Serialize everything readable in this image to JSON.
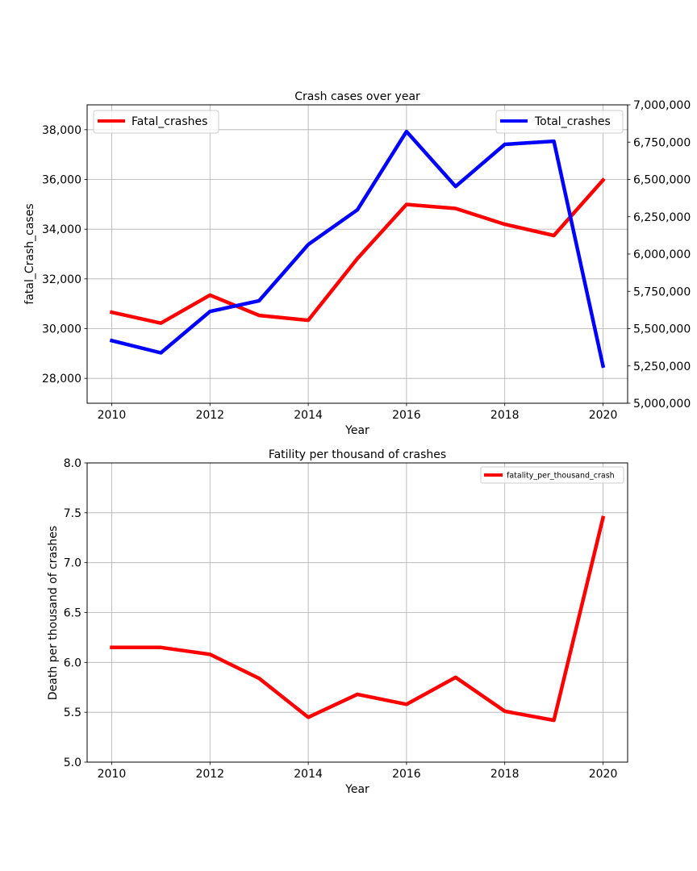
{
  "chart_data": [
    {
      "type": "line",
      "title": "Crash cases over year",
      "xlabel": "Year",
      "ylabel": "fatal_Crash_cases",
      "xlim": [
        2009.5,
        2020.5
      ],
      "xticks": [
        2010,
        2012,
        2014,
        2016,
        2018,
        2020
      ],
      "xtick_labels": [
        "2010",
        "2012",
        "2014",
        "2016",
        "2018",
        "2020"
      ],
      "ylim": [
        27000,
        39000
      ],
      "yticks": [
        28000,
        30000,
        32000,
        34000,
        36000,
        38000
      ],
      "ytick_labels": [
        "28,000",
        "30,000",
        "32,000",
        "34,000",
        "36,000",
        "38,000"
      ],
      "y2lim": [
        5000000,
        7000000
      ],
      "y2ticks": [
        5000000,
        5250000,
        5500000,
        5750000,
        6000000,
        6250000,
        6500000,
        6750000,
        7000000
      ],
      "y2tick_labels": [
        "5,000,000",
        "5,250,000",
        "5,500,000",
        "5,750,000",
        "6,000,000",
        "6,250,000",
        "6,500,000",
        "6,750,000",
        "7,000,000"
      ],
      "grid": true,
      "x": [
        2010,
        2011,
        2012,
        2013,
        2014,
        2015,
        2016,
        2017,
        2018,
        2019,
        2020
      ],
      "series": [
        {
          "name": "Fatal_crashes",
          "axis": "left",
          "color": "#ff0000",
          "legend": "upper-left",
          "values": [
            30657,
            30221,
            31350,
            30533,
            30338,
            32819,
            34993,
            34832,
            34197,
            33745,
            35975
          ]
        },
        {
          "name": "Total_crashes",
          "axis": "right",
          "color": "#0000ff",
          "legend": "upper-right",
          "values": [
            5420000,
            5338000,
            5615000,
            5687000,
            6064000,
            6296000,
            6821000,
            6453000,
            6735000,
            6756000,
            5250000
          ]
        }
      ]
    },
    {
      "type": "line",
      "title": "Fatility per thousand of crashes",
      "xlabel": "Year",
      "ylabel": "Death per thousand of crashes",
      "xlim": [
        2009.5,
        2020.5
      ],
      "xticks": [
        2010,
        2012,
        2014,
        2016,
        2018,
        2020
      ],
      "xtick_labels": [
        "2010",
        "2012",
        "2014",
        "2016",
        "2018",
        "2020"
      ],
      "ylim": [
        5.0,
        8.0
      ],
      "yticks": [
        5.0,
        5.5,
        6.0,
        6.5,
        7.0,
        7.5,
        8.0
      ],
      "ytick_labels": [
        "5.0",
        "5.5",
        "6.0",
        "6.5",
        "7.0",
        "7.5",
        "8.0"
      ],
      "grid": true,
      "legend_position": "top-right",
      "x": [
        2010,
        2011,
        2012,
        2013,
        2014,
        2015,
        2016,
        2017,
        2018,
        2019,
        2020
      ],
      "series": [
        {
          "name": "fatality_per_thousand_crash",
          "color": "#ff0000",
          "values": [
            6.15,
            6.15,
            6.08,
            5.84,
            5.45,
            5.68,
            5.58,
            5.85,
            5.51,
            5.42,
            7.45
          ]
        }
      ]
    }
  ]
}
